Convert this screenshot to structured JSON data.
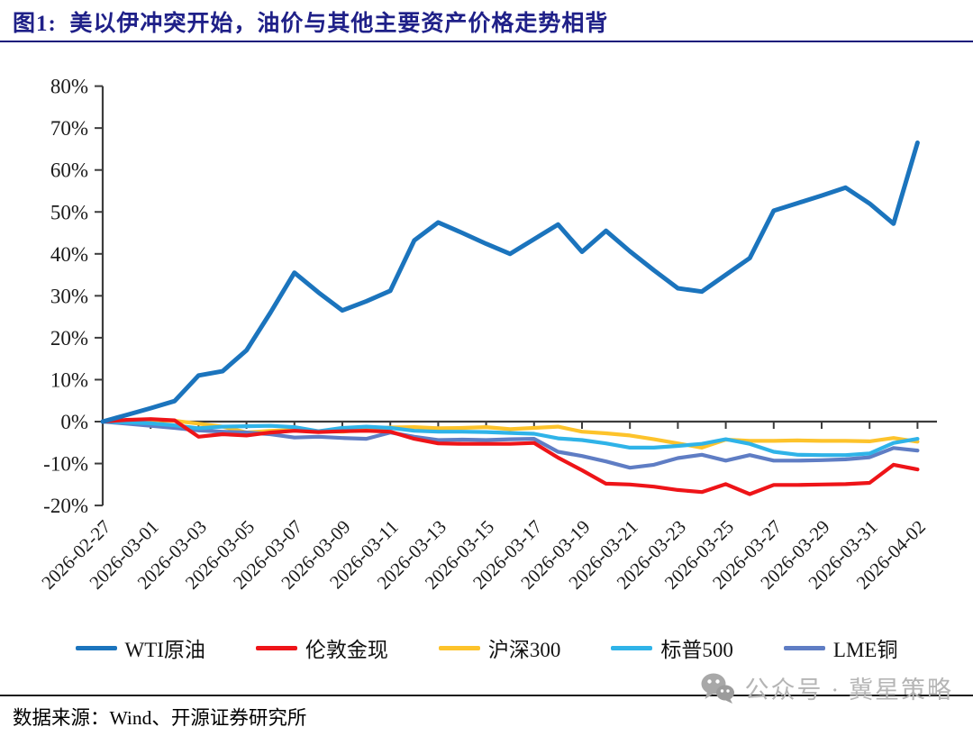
{
  "figure": {
    "title": "图1:  美以伊冲突开始，油价与其他主要资产价格走势相背",
    "source_note": "数据来源：Wind、开源证券研究所",
    "watermark_text": "公众号 · 冀星策略",
    "watermark_icon": "wechat-icon",
    "colors": {
      "title": "#1f2088",
      "top_rule": "#14147a",
      "bottom_rule": "#1b1b1b",
      "axis": "#3c3c3c",
      "watermark_gray": "#b5b5b5"
    }
  },
  "chart_data": {
    "type": "line",
    "title": "",
    "xlabel": "",
    "ylabel": "",
    "grid": false,
    "legend_position": "bottom",
    "ylim": [
      -20,
      80
    ],
    "y_tick_suffix": "%",
    "y_ticks_percent": [
      80,
      70,
      60,
      50,
      40,
      30,
      20,
      10,
      0,
      -10,
      -20
    ],
    "x": [
      "2026-02-27",
      "2026-02-28",
      "2026-03-01",
      "2026-03-02",
      "2026-03-03",
      "2026-03-04",
      "2026-03-05",
      "2026-03-06",
      "2026-03-07",
      "2026-03-08",
      "2026-03-09",
      "2026-03-10",
      "2026-03-11",
      "2026-03-12",
      "2026-03-13",
      "2026-03-14",
      "2026-03-15",
      "2026-03-16",
      "2026-03-17",
      "2026-03-18",
      "2026-03-19",
      "2026-03-20",
      "2026-03-21",
      "2026-03-22",
      "2026-03-23",
      "2026-03-24",
      "2026-03-25",
      "2026-03-26",
      "2026-03-27",
      "2026-03-28",
      "2026-03-29",
      "2026-03-30",
      "2026-03-31",
      "2026-04-01",
      "2026-04-02"
    ],
    "x_tick_labels": [
      "2026-02-27",
      "2026-03-01",
      "2026-03-03",
      "2026-03-05",
      "2026-03-07",
      "2026-03-09",
      "2026-03-11",
      "2026-03-13",
      "2026-03-15",
      "2026-03-17",
      "2026-03-19",
      "2026-03-21",
      "2026-03-23",
      "2026-03-25",
      "2026-03-27",
      "2026-03-29",
      "2026-03-31",
      "2026-04-02"
    ],
    "series": [
      {
        "name": "WTI原油",
        "color": "#1b74bd",
        "values": [
          0,
          1.6,
          3.2,
          4.9,
          11,
          12,
          17,
          26,
          35.5,
          30.8,
          26.5,
          28.7,
          31.2,
          43.2,
          47.5,
          45,
          42.4,
          40,
          43.5,
          47,
          40.5,
          45.5,
          40.6,
          36.1,
          31.8,
          31,
          35,
          39,
          50.3,
          52.1,
          53.9,
          55.8,
          52,
          47.2,
          66.5
        ]
      },
      {
        "name": "伦敦金现",
        "color": "#ee1418",
        "values": [
          0,
          0.4,
          0.6,
          0.3,
          -3.6,
          -3,
          -3.3,
          -2.6,
          -2.2,
          -2.5,
          -2.3,
          -2.2,
          -2.4,
          -4.1,
          -5.2,
          -5.3,
          -5.3,
          -5.3,
          -5.1,
          -8.6,
          -11.6,
          -14.8,
          -15,
          -15.5,
          -16.3,
          -16.8,
          -14.9,
          -17.3,
          -15.1,
          -15.1,
          -15,
          -14.9,
          -14.6,
          -10.3,
          -11.4
        ]
      },
      {
        "name": "沪深300",
        "color": "#fdc32b",
        "values": [
          0,
          0.2,
          0.4,
          0.2,
          -0.5,
          -1.2,
          -2.6,
          -2.2,
          -2,
          -2.3,
          -2.4,
          -1.8,
          -1.4,
          -1.3,
          -1.6,
          -1.5,
          -1.3,
          -1.8,
          -1.5,
          -1.2,
          -2.4,
          -2.8,
          -3.3,
          -4.2,
          -5.2,
          -6.2,
          -4.3,
          -4.6,
          -4.6,
          -4.5,
          -4.6,
          -4.6,
          -4.7,
          -3.9,
          -4.8
        ]
      },
      {
        "name": "标普500",
        "color": "#2fb3e8",
        "values": [
          0,
          -0.2,
          -0.4,
          -0.9,
          -1.6,
          -1.2,
          -1.1,
          -1,
          -1.3,
          -2.3,
          -1.5,
          -1.2,
          -1.5,
          -2.2,
          -2.4,
          -2.4,
          -2.5,
          -2.7,
          -2.9,
          -4,
          -4.4,
          -5.2,
          -6.2,
          -6.2,
          -5.8,
          -5.3,
          -4.2,
          -5.3,
          -7.2,
          -7.9,
          -8,
          -8,
          -7.6,
          -5.1,
          -4.1
        ]
      },
      {
        "name": "LME铜",
        "color": "#5f7dc4",
        "values": [
          0,
          -0.5,
          -1,
          -1.5,
          -2.1,
          -2.4,
          -2.6,
          -3,
          -3.8,
          -3.6,
          -3.9,
          -4.1,
          -2.6,
          -3.6,
          -4.4,
          -4.3,
          -4.4,
          -4.2,
          -4.1,
          -7.2,
          -8.2,
          -9.5,
          -11,
          -10.3,
          -8.7,
          -7.9,
          -9.3,
          -8,
          -9.3,
          -9.3,
          -9.2,
          -9,
          -8.5,
          -6.3,
          -6.9
        ]
      }
    ]
  }
}
